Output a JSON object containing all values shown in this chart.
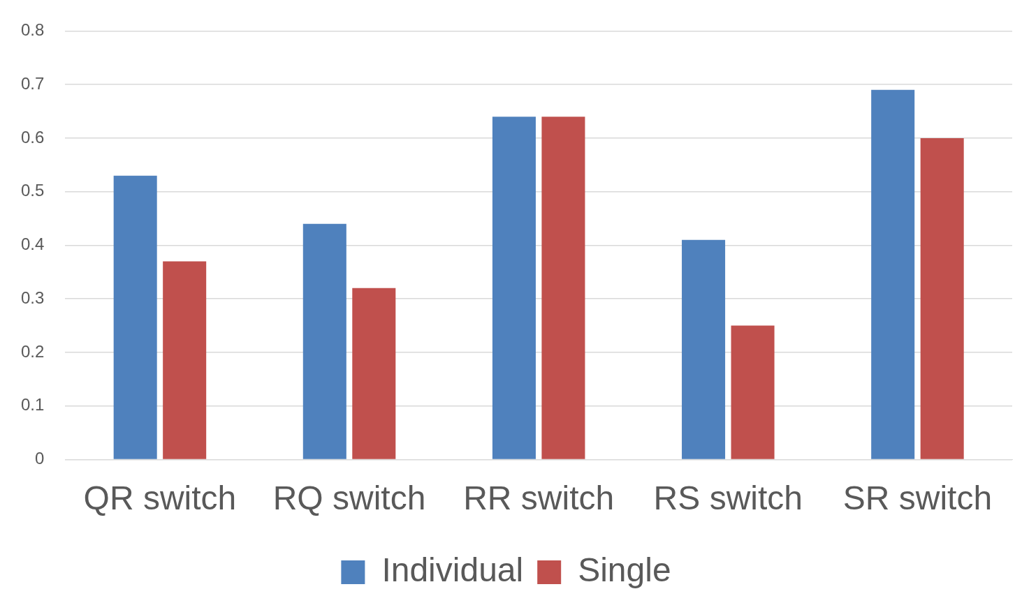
{
  "chart_data": {
    "type": "bar",
    "categories": [
      "QR switch",
      "RQ switch",
      "RR switch",
      "RS switch",
      "SR switch"
    ],
    "series": [
      {
        "name": "Individual",
        "color": "#4f81bd",
        "values": [
          0.53,
          0.44,
          0.64,
          0.41,
          0.69
        ]
      },
      {
        "name": "Single",
        "color": "#c0504d",
        "values": [
          0.37,
          0.32,
          0.64,
          0.25,
          0.6
        ]
      }
    ],
    "ylim": [
      0,
      0.8
    ],
    "yticks": [
      0,
      0.1,
      0.2,
      0.3,
      0.4,
      0.5,
      0.6,
      0.7,
      0.8
    ],
    "grid": "y",
    "legend": "bottom"
  }
}
